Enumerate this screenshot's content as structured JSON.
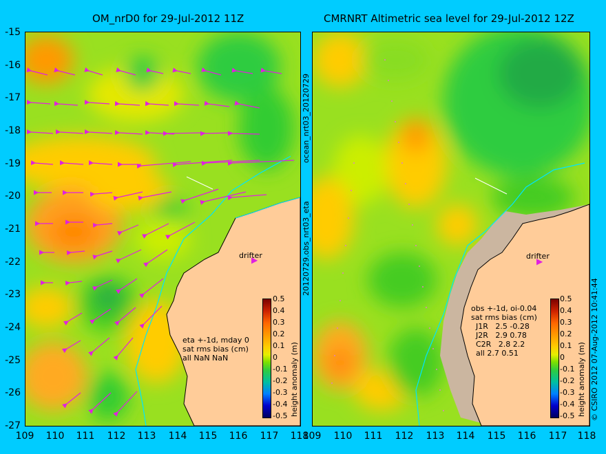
{
  "titles": {
    "left": "OM_nrD0 for 29-Jul-2012 11Z",
    "right": "CMRNRT Altimetric sea level  for 29-Jul-2012 12Z"
  },
  "axes": {
    "y_ticks": [
      "-15",
      "-16",
      "-17",
      "-18",
      "-19",
      "-20",
      "-21",
      "-22",
      "-23",
      "-24",
      "-25",
      "-26",
      "-27"
    ],
    "x_ticks": [
      "109",
      "110",
      "111",
      "112",
      "113",
      "114",
      "115",
      "116",
      "117",
      "118"
    ]
  },
  "side_labels": {
    "middle": "20120729.obs_nrt03_eta",
    "middle_top": "ocean_nrt03_20120729",
    "credit": "© CSIRO 2012   07-Aug-2012 10:41:44"
  },
  "left_panel": {
    "stats": "eta +-1d, mday 0\nsat rms bias (cm)\nall NaN NaN",
    "drifter_label": "drifter"
  },
  "right_panel": {
    "stats": "obs +-1d, oi-0.04\nsat rms bias (cm)\n  J1R   2.5 -0.28\n  J2R   2.9 0.78\n  C2R   2.8 2.2\n  all 2.7 0.51",
    "drifter_label": "drifter"
  },
  "colorbar": {
    "ticks": [
      "0.5",
      "0.4",
      "0.3",
      "0.2",
      "0.1",
      "0",
      "-0.1",
      "-0.2",
      "-0.3",
      "-0.4",
      "-0.5"
    ],
    "title": "height anomaly (m)"
  },
  "colors": {
    "background": "#00ccff",
    "land": "#ffcc99",
    "arrows": "#e020e0",
    "coast": "#000000"
  }
}
